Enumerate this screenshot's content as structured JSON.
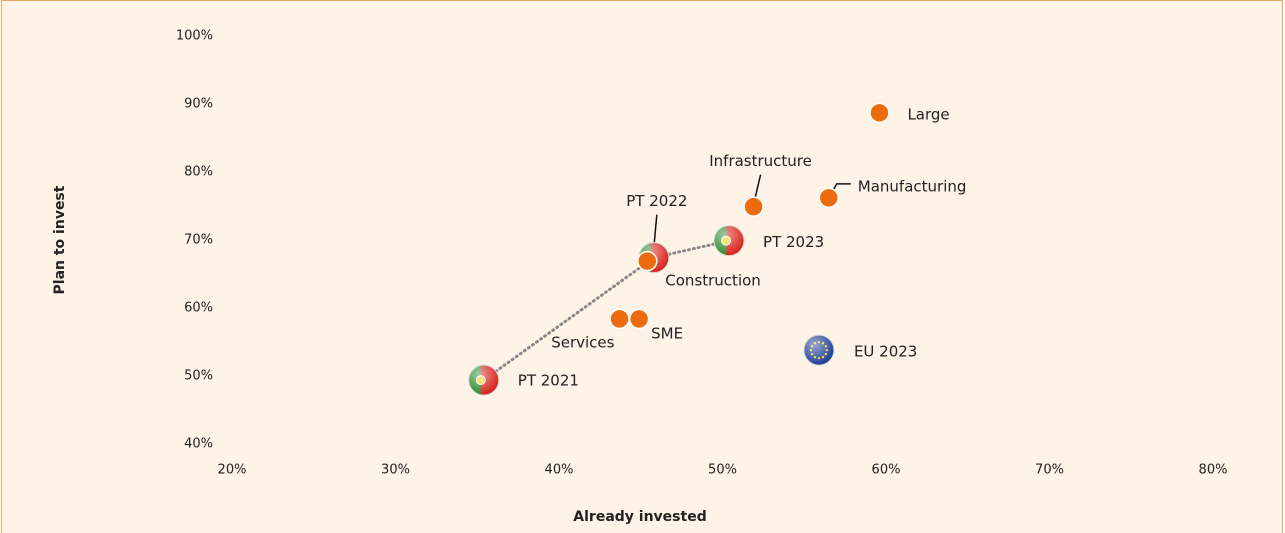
{
  "chart_data": {
    "type": "scatter",
    "xlabel": "Already invested",
    "ylabel": "Plan to invest",
    "xlim": [
      20,
      80
    ],
    "ylim": [
      40,
      100
    ],
    "xticks": [
      {
        "value": 20,
        "label": "20%"
      },
      {
        "value": 30,
        "label": "30%"
      },
      {
        "value": 40,
        "label": "40%"
      },
      {
        "value": 50,
        "label": "50%"
      },
      {
        "value": 60,
        "label": "60%"
      },
      {
        "value": 70,
        "label": "70%"
      },
      {
        "value": 80,
        "label": "80%"
      }
    ],
    "yticks": [
      {
        "value": 40,
        "label": "40%"
      },
      {
        "value": 50,
        "label": "50%"
      },
      {
        "value": 60,
        "label": "60%"
      },
      {
        "value": 70,
        "label": "70%"
      },
      {
        "value": 80,
        "label": "80%"
      },
      {
        "value": 90,
        "label": "90%"
      },
      {
        "value": 100,
        "label": "100%"
      }
    ],
    "series": [
      {
        "labels": [
          "PT 2021",
          "PT 2022",
          "PT 2023",
          "EU 2023"
        ],
        "x": [
          35.4,
          45.8,
          50.4,
          55.9
        ],
        "values": [
          49.4,
          67.4,
          69.9,
          53.8
        ],
        "colors": [
          [
            "#2a8a2a",
            "#d7261e"
          ],
          [
            "#2a8a2a",
            "#d7261e"
          ],
          [
            "#2a8a2a",
            "#d7261e"
          ],
          [
            "#1f3f94",
            "#1f3f94"
          ]
        ],
        "line_color": "#888888"
      },
      {
        "labels": [
          "Large",
          "Manufacturing",
          "Infrastructure",
          "Construction",
          "Services",
          "SME"
        ],
        "x": [
          59.6,
          56.5,
          51.9,
          45.4,
          43.7,
          44.9
        ],
        "values": [
          88.7,
          76.2,
          74.9,
          66.9,
          58.4,
          58.4
        ],
        "color": "#ec6b0c"
      }
    ]
  }
}
